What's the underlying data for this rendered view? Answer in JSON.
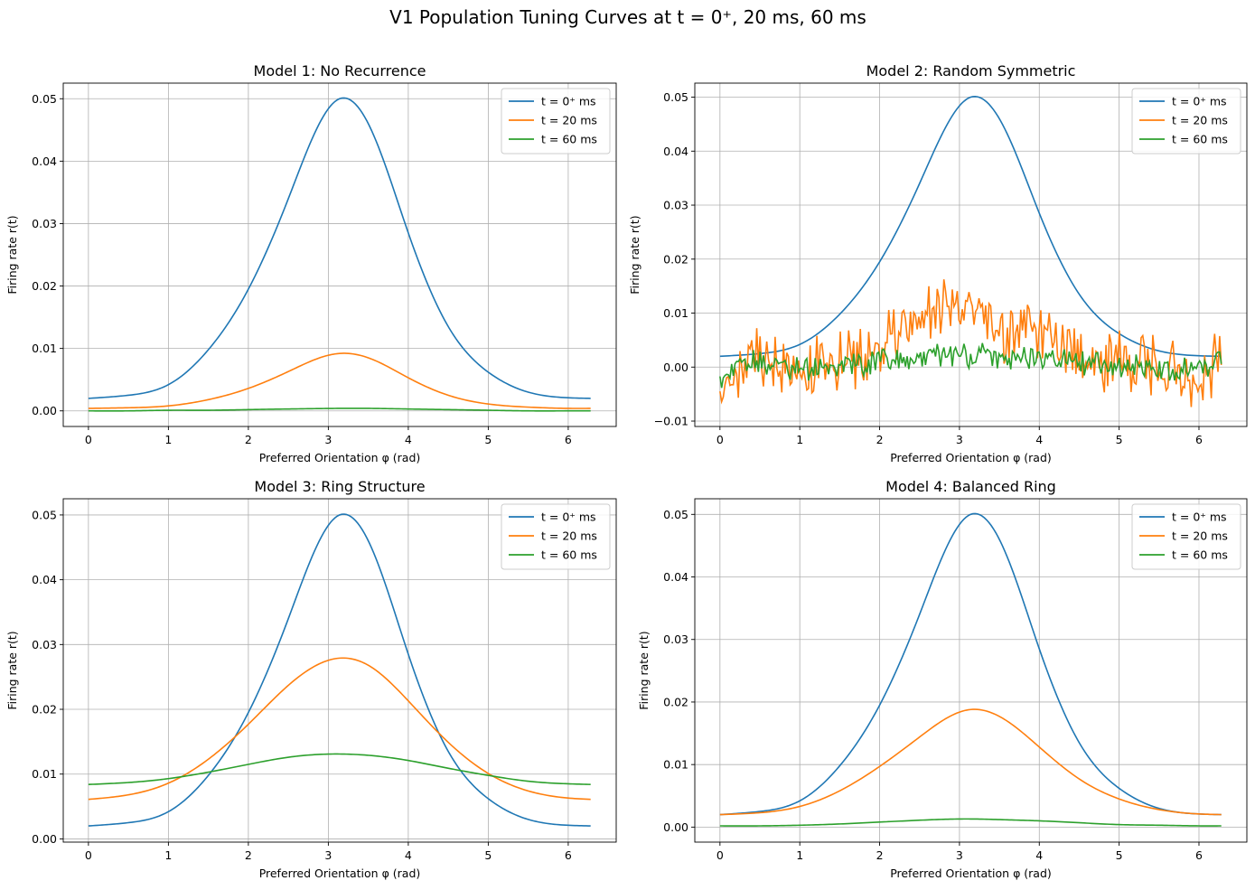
{
  "figure": {
    "suptitle": "V1 Population Tuning Curves at t = 0⁺, 20 ms, 60 ms"
  },
  "colors": {
    "t0": "#1f77b4",
    "t20": "#ff7f0e",
    "t60": "#2ca02c"
  },
  "chart_data": [
    {
      "type": "line",
      "title": "Model 1: No Recurrence",
      "xlabel": "Preferred Orientation φ (rad)",
      "ylabel": "Firing rate r(t)",
      "xlim": [
        -0.315,
        6.6
      ],
      "ylim": [
        -0.0025,
        0.0525
      ],
      "xticks": [
        0,
        1,
        2,
        3,
        4,
        5,
        6
      ],
      "xtick_labels": [
        "0",
        "1",
        "2",
        "3",
        "4",
        "5",
        "6"
      ],
      "yticks": [
        0,
        0.01,
        0.02,
        0.03,
        0.04,
        0.05
      ],
      "ytick_labels": [
        "0.00",
        "0.01",
        "0.02",
        "0.03",
        "0.04",
        "0.05"
      ],
      "grid": true,
      "legend_position": "top-right",
      "x": [
        0,
        0.5,
        1.0,
        1.5,
        2.0,
        2.5,
        3.14,
        3.5,
        4.0,
        4.5,
        5.0,
        5.5,
        6.0,
        6.28
      ],
      "series": [
        {
          "name": "t = 0⁺ ms",
          "values": [
            0.002,
            0.0025,
            0.0042,
            0.0098,
            0.0195,
            0.034,
            0.05,
            0.046,
            0.0285,
            0.0135,
            0.0062,
            0.003,
            0.0021,
            0.002
          ]
        },
        {
          "name": "t = 20 ms",
          "values": [
            0.0004,
            0.0005,
            0.0008,
            0.0018,
            0.0036,
            0.0063,
            0.0092,
            0.0085,
            0.0053,
            0.0025,
            0.0011,
            0.0006,
            0.0004,
            0.0004
          ]
        },
        {
          "name": "t = 60 ms",
          "values": [
            0.0,
            0.0,
            0.0001,
            0.0001,
            0.0002,
            0.0003,
            0.0004,
            0.0004,
            0.0003,
            0.0002,
            0.0001,
            0.0,
            0.0,
            0.0
          ]
        }
      ]
    },
    {
      "type": "line",
      "title": "Model 2: Random Symmetric",
      "xlabel": "Preferred Orientation φ (rad)",
      "ylabel": "Firing rate r(t)",
      "xlim": [
        -0.315,
        6.6
      ],
      "ylim": [
        -0.011,
        0.0526
      ],
      "xticks": [
        0,
        1,
        2,
        3,
        4,
        5,
        6
      ],
      "xtick_labels": [
        "0",
        "1",
        "2",
        "3",
        "4",
        "5",
        "6"
      ],
      "yticks": [
        -0.01,
        0,
        0.01,
        0.02,
        0.03,
        0.04,
        0.05
      ],
      "ytick_labels": [
        "−0.01",
        "0.00",
        "0.01",
        "0.02",
        "0.03",
        "0.04",
        "0.05"
      ],
      "grid": true,
      "legend_position": "top-right",
      "x": [
        0,
        0.5,
        1.0,
        1.5,
        2.0,
        2.5,
        3.14,
        3.5,
        4.0,
        4.5,
        5.0,
        5.5,
        6.0,
        6.28
      ],
      "series": [
        {
          "name": "t = 0⁺ ms",
          "values": [
            0.002,
            0.0025,
            0.0042,
            0.0098,
            0.0195,
            0.034,
            0.05,
            0.046,
            0.0285,
            0.0135,
            0.0062,
            0.003,
            0.0021,
            0.002
          ]
        },
        {
          "name": "t = 20 ms",
          "values": [
            -0.005,
            0.002,
            0.0,
            0.001,
            0.004,
            0.009,
            0.01,
            0.006,
            0.007,
            0.003,
            0.001,
            0.0,
            -0.001,
            0.001
          ]
        },
        {
          "name": "t = 60 ms",
          "values": [
            -0.002,
            0.001,
            0.0,
            0.0,
            0.001,
            0.002,
            0.002,
            0.002,
            0.002,
            0.001,
            0.0,
            0.0,
            0.0,
            0.001
          ]
        }
      ]
    },
    {
      "type": "line",
      "title": "Model 3: Ring Structure",
      "xlabel": "Preferred Orientation φ (rad)",
      "ylabel": "Firing rate r(t)",
      "xlim": [
        -0.315,
        6.6
      ],
      "ylim": [
        -0.0005,
        0.0525
      ],
      "xticks": [
        0,
        1,
        2,
        3,
        4,
        5,
        6
      ],
      "xtick_labels": [
        "0",
        "1",
        "2",
        "3",
        "4",
        "5",
        "6"
      ],
      "yticks": [
        0,
        0.01,
        0.02,
        0.03,
        0.04,
        0.05
      ],
      "ytick_labels": [
        "0.00",
        "0.01",
        "0.02",
        "0.03",
        "0.04",
        "0.05"
      ],
      "grid": true,
      "legend_position": "top-right",
      "x": [
        0,
        0.5,
        1.0,
        1.5,
        2.0,
        2.5,
        3.14,
        3.5,
        4.0,
        4.5,
        5.0,
        5.5,
        6.0,
        6.28
      ],
      "series": [
        {
          "name": "t = 0⁺ ms",
          "values": [
            0.002,
            0.0025,
            0.0042,
            0.0098,
            0.0195,
            0.034,
            0.05,
            0.046,
            0.0285,
            0.0135,
            0.0062,
            0.003,
            0.0021,
            0.002
          ]
        },
        {
          "name": "t = 20 ms",
          "values": [
            0.0061,
            0.0068,
            0.0086,
            0.0123,
            0.0177,
            0.0237,
            0.0279,
            0.0268,
            0.0213,
            0.0149,
            0.0101,
            0.0074,
            0.0063,
            0.0061
          ]
        },
        {
          "name": "t = 60 ms",
          "values": [
            0.0084,
            0.0087,
            0.0093,
            0.0103,
            0.0115,
            0.0126,
            0.0131,
            0.0129,
            0.0121,
            0.0109,
            0.0098,
            0.0089,
            0.0085,
            0.0084
          ]
        }
      ]
    },
    {
      "type": "line",
      "title": "Model 4: Balanced Ring",
      "xlabel": "Preferred Orientation φ (rad)",
      "ylabel": "Firing rate r(t)",
      "xlim": [
        -0.315,
        6.6
      ],
      "ylim": [
        -0.0024,
        0.0525
      ],
      "xticks": [
        0,
        1,
        2,
        3,
        4,
        5,
        6
      ],
      "xtick_labels": [
        "0",
        "1",
        "2",
        "3",
        "4",
        "5",
        "6"
      ],
      "yticks": [
        0,
        0.01,
        0.02,
        0.03,
        0.04,
        0.05
      ],
      "ytick_labels": [
        "0.00",
        "0.01",
        "0.02",
        "0.03",
        "0.04",
        "0.05"
      ],
      "grid": true,
      "legend_position": "top-right",
      "x": [
        0,
        0.5,
        1.0,
        1.5,
        2.0,
        2.5,
        3.14,
        3.5,
        4.0,
        4.5,
        5.0,
        5.5,
        6.0,
        6.28
      ],
      "series": [
        {
          "name": "t = 0⁺ ms",
          "values": [
            0.002,
            0.0025,
            0.0042,
            0.0098,
            0.0195,
            0.034,
            0.05,
            0.046,
            0.0285,
            0.0135,
            0.0062,
            0.003,
            0.0021,
            0.002
          ]
        },
        {
          "name": "t = 20 ms",
          "values": [
            0.002,
            0.0023,
            0.0033,
            0.0058,
            0.0097,
            0.0144,
            0.0188,
            0.0177,
            0.0128,
            0.0077,
            0.0045,
            0.0028,
            0.0021,
            0.002
          ]
        },
        {
          "name": "t = 60 ms",
          "values": [
            0.0002,
            0.0002,
            0.0003,
            0.0005,
            0.0008,
            0.0011,
            0.0013,
            0.0012,
            0.001,
            0.0007,
            0.0004,
            0.0003,
            0.0002,
            0.0002
          ]
        }
      ]
    }
  ]
}
